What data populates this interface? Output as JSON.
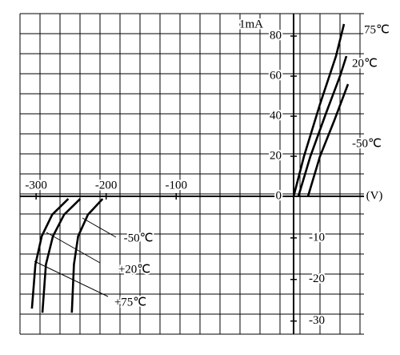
{
  "chart_data": [
    {
      "type": "line",
      "y_label": "1mA",
      "x_label": "(V)",
      "xlim": [
        0,
        1
      ],
      "ylim": [
        0,
        90
      ],
      "yticks": [
        0,
        20,
        40,
        60,
        80
      ],
      "series": [
        {
          "name": "75℃",
          "color": "#000000",
          "x": [
            0,
            0.13,
            0.33,
            0.53,
            0.63
          ],
          "values": [
            0,
            20,
            46,
            70,
            86
          ]
        },
        {
          "name": "20℃",
          "color": "#000000",
          "x": [
            0.06,
            0.21,
            0.41,
            0.58,
            0.66
          ],
          "values": [
            0,
            20,
            42,
            60,
            70
          ]
        },
        {
          "name": "-50℃",
          "color": "#000000",
          "x": [
            0.18,
            0.33,
            0.51,
            0.68
          ],
          "values": [
            0,
            20,
            38,
            56
          ]
        }
      ]
    },
    {
      "type": "line",
      "xlim": [
        -323,
        -66
      ],
      "ylim": [
        -32,
        0
      ],
      "xticks": [
        -300,
        -200,
        -100
      ],
      "yticks": [
        -10,
        -20,
        -30
      ],
      "series": [
        {
          "name": "-50℃",
          "color": "#000000",
          "x": [
            -249,
            -246,
            -240,
            -226,
            -205
          ],
          "values": [
            -28,
            -16.4,
            -9.6,
            -4.4,
            -0.6
          ]
        },
        {
          "name": "+20℃",
          "color": "#000000",
          "x": [
            -291,
            -286,
            -276,
            -260,
            -237
          ],
          "values": [
            -28,
            -16.4,
            -9.6,
            -4.4,
            -0.6
          ]
        },
        {
          "name": "+75℃",
          "color": "#000000",
          "x": [
            -306,
            -301,
            -292,
            -277,
            -254
          ],
          "values": [
            -27,
            -16.4,
            -9.6,
            -4.4,
            -0.6
          ]
        }
      ]
    }
  ]
}
